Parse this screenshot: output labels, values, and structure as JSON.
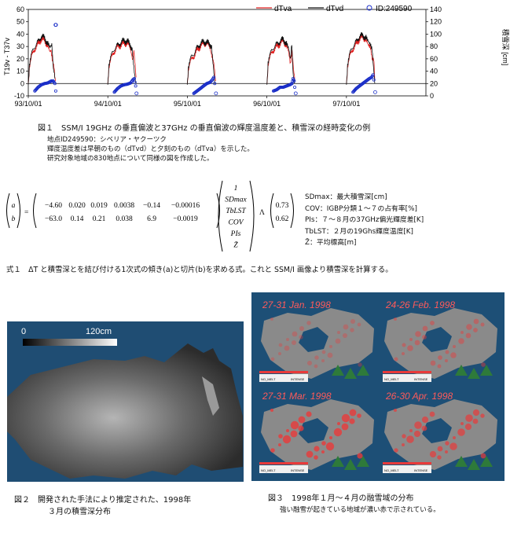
{
  "figure1": {
    "chart_data": {
      "type": "line",
      "x_tick_labels": [
        "93/10/01",
        "94/10/01",
        "95/10/01",
        "96/10/01",
        "97/10/01"
      ],
      "left_axis": {
        "label": "T19v - T37v",
        "ticks": [
          60,
          50,
          40,
          30,
          20,
          10,
          0,
          -10
        ],
        "ylim": [
          -10,
          60
        ]
      },
      "right_axis": {
        "label": "積雪深 [cm]",
        "ticks": [
          140,
          120,
          100,
          80,
          60,
          40,
          20,
          0
        ],
        "ylim": [
          0,
          140
        ]
      },
      "legend": {
        "placement": "top-right",
        "entries": [
          "dTva",
          "dTvd",
          "ID:249590"
        ]
      },
      "series": [
        {
          "name": "dTva",
          "color": "#e02020",
          "seasons": [
            {
              "start": 0,
              "points": [
                [
                  0,
                  0
                ],
                [
                  5,
                  12
                ],
                [
                  15,
                  22
                ],
                [
                  30,
                  28
                ],
                [
                  45,
                  32
                ],
                [
                  60,
                  36
                ],
                [
                  75,
                  35
                ],
                [
                  90,
                  30
                ],
                [
                  100,
                  24
                ],
                [
                  105,
                  28
                ],
                [
                  110,
                  18
                ],
                [
                  118,
                  12
                ],
                [
                  125,
                  2
                ]
              ]
            },
            {
              "start": 365,
              "points": [
                [
                  0,
                  0
                ],
                [
                  5,
                  12
                ],
                [
                  15,
                  20
                ],
                [
                  30,
                  26
                ],
                [
                  45,
                  30
                ],
                [
                  60,
                  31
                ],
                [
                  75,
                  33
                ],
                [
                  90,
                  32
                ],
                [
                  105,
                  29
                ],
                [
                  115,
                  20
                ],
                [
                  120,
                  25
                ],
                [
                  130,
                  5
                ]
              ]
            },
            {
              "start": 730,
              "points": [
                [
                  0,
                  0
                ],
                [
                  5,
                  10
                ],
                [
                  15,
                  18
                ],
                [
                  30,
                  22
                ],
                [
                  45,
                  27
                ],
                [
                  60,
                  30
                ],
                [
                  75,
                  33
                ],
                [
                  90,
                  32
                ],
                [
                  105,
                  30
                ],
                [
                  115,
                  22
                ],
                [
                  122,
                  15
                ],
                [
                  130,
                  2
                ]
              ]
            },
            {
              "start": 1096,
              "points": [
                [
                  0,
                  0
                ],
                [
                  5,
                  14
                ],
                [
                  15,
                  22
                ],
                [
                  30,
                  27
                ],
                [
                  45,
                  30
                ],
                [
                  60,
                  32
                ],
                [
                  75,
                  35
                ],
                [
                  90,
                  30
                ],
                [
                  100,
                  24
                ],
                [
                  108,
                  14
                ],
                [
                  115,
                  28
                ],
                [
                  122,
                  10
                ],
                [
                  128,
                  2
                ]
              ]
            },
            {
              "start": 1461,
              "points": [
                [
                  0,
                  0
                ],
                [
                  5,
                  12
                ],
                [
                  15,
                  22
                ],
                [
                  30,
                  28
                ],
                [
                  45,
                  32
                ],
                [
                  60,
                  36
                ],
                [
                  75,
                  38
                ],
                [
                  90,
                  35
                ],
                [
                  100,
                  30
                ],
                [
                  110,
                  28
                ],
                [
                  118,
                  18
                ],
                [
                  125,
                  22
                ],
                [
                  130,
                  4
                ]
              ]
            }
          ]
        },
        {
          "name": "dTvd",
          "color": "#111111",
          "seasons": [
            {
              "start": 0,
              "points": [
                [
                  0,
                  0
                ],
                [
                  5,
                  14
                ],
                [
                  15,
                  24
                ],
                [
                  30,
                  30
                ],
                [
                  45,
                  34
                ],
                [
                  60,
                  38
                ],
                [
                  75,
                  37
                ],
                [
                  90,
                  32
                ],
                [
                  100,
                  28
                ],
                [
                  108,
                  30
                ],
                [
                  115,
                  14
                ],
                [
                  122,
                  4
                ]
              ]
            },
            {
              "start": 365,
              "points": [
                [
                  0,
                  0
                ],
                [
                  5,
                  14
                ],
                [
                  15,
                  22
                ],
                [
                  30,
                  28
                ],
                [
                  45,
                  31
                ],
                [
                  60,
                  33
                ],
                [
                  75,
                  35
                ],
                [
                  90,
                  34
                ],
                [
                  105,
                  31
                ],
                [
                  112,
                  26
                ],
                [
                  122,
                  8
                ],
                [
                  128,
                  0
                ]
              ]
            },
            {
              "start": 730,
              "points": [
                [
                  0,
                  0
                ],
                [
                  5,
                  12
                ],
                [
                  15,
                  20
                ],
                [
                  30,
                  24
                ],
                [
                  45,
                  29
                ],
                [
                  60,
                  32
                ],
                [
                  75,
                  34
                ],
                [
                  90,
                  33
                ],
                [
                  105,
                  32
                ],
                [
                  112,
                  28
                ],
                [
                  120,
                  12
                ],
                [
                  126,
                  0
                ]
              ]
            },
            {
              "start": 1096,
              "points": [
                [
                  0,
                  0
                ],
                [
                  5,
                  16
                ],
                [
                  15,
                  24
                ],
                [
                  30,
                  29
                ],
                [
                  45,
                  32
                ],
                [
                  60,
                  34
                ],
                [
                  75,
                  36
                ],
                [
                  90,
                  32
                ],
                [
                  100,
                  27
                ],
                [
                  108,
                  18
                ],
                [
                  114,
                  31
                ],
                [
                  120,
                  6
                ],
                [
                  126,
                  0
                ]
              ]
            },
            {
              "start": 1461,
              "points": [
                [
                  0,
                  0
                ],
                [
                  5,
                  14
                ],
                [
                  15,
                  24
                ],
                [
                  30,
                  30
                ],
                [
                  45,
                  34
                ],
                [
                  60,
                  38
                ],
                [
                  75,
                  39
                ],
                [
                  90,
                  37
                ],
                [
                  100,
                  33
                ],
                [
                  110,
                  30
                ],
                [
                  118,
                  26
                ],
                [
                  124,
                  12
                ],
                [
                  130,
                  0
                ]
              ]
            }
          ]
        },
        {
          "name": "ID:249590",
          "color": "#1a2ec8",
          "seasons": [
            {
              "start": 30,
              "points": [
                [
                  0,
                  8
                ],
                [
                  15,
                  14
                ],
                [
                  30,
                  18
                ],
                [
                  45,
                  20
                ],
                [
                  60,
                  21
                ],
                [
                  75,
                  24
                ],
                [
                  85,
                  24
                ],
                [
                  92,
                  20
                ],
                [
                  96,
                  8
                ],
                [
                  98,
                  2
                ],
                [
                  95,
                  115
                ]
              ]
            },
            {
              "start": 395,
              "points": [
                [
                  0,
                  6
                ],
                [
                  15,
                  12
                ],
                [
                  30,
                  16
                ],
                [
                  45,
                  18
                ],
                [
                  60,
                  19
                ],
                [
                  75,
                  21
                ],
                [
                  85,
                  26
                ],
                [
                  92,
                  28
                ],
                [
                  98,
                  16
                ],
                [
                  100,
                  4
                ]
              ]
            },
            {
              "start": 760,
              "points": [
                [
                  0,
                  4
                ],
                [
                  15,
                  8
                ],
                [
                  30,
                  12
                ],
                [
                  45,
                  16
                ],
                [
                  60,
                  20
                ],
                [
                  75,
                  22
                ],
                [
                  85,
                  26
                ],
                [
                  92,
                  30
                ],
                [
                  96,
                  20
                ],
                [
                  100,
                  4
                ]
              ]
            },
            {
              "start": 1126,
              "points": [
                [
                  0,
                  8
                ],
                [
                  15,
                  10
                ],
                [
                  30,
                  14
                ],
                [
                  45,
                  14
                ],
                [
                  60,
                  16
                ],
                [
                  75,
                  18
                ],
                [
                  85,
                  20
                ],
                [
                  90,
                  28
                ],
                [
                  95,
                  24
                ],
                [
                  100,
                  4
                ]
              ]
            },
            {
              "start": 1491,
              "points": [
                [
                  0,
                  6
                ],
                [
                  15,
                  12
                ],
                [
                  30,
                  16
                ],
                [
                  45,
                  20
                ],
                [
                  60,
                  24
                ],
                [
                  75,
                  28
                ],
                [
                  85,
                  30
                ],
                [
                  92,
                  34
                ],
                [
                  96,
                  26
                ],
                [
                  100,
                  6
                ]
              ]
            }
          ]
        }
      ]
    },
    "caption": "図１　SSM/I 19GHz の垂直偏波と37GHz の垂直偏波の輝度温度差と、積雪深の経時変化の例",
    "notes": [
      "地点ID249590：シベリア・ヤクーツク",
      "輝度温度差は早朝のもの（dTvd）と夕刻のもの（dTva）を示した。",
      "研究対象地域の830地点について同様の図を作成した。"
    ]
  },
  "equation": {
    "lhs": [
      "a",
      "b"
    ],
    "matrix": [
      [
        "−4.60",
        "0.020",
        "0.019",
        "0.0038",
        "−0.14",
        "−0.00016"
      ],
      [
        "−63.0",
        "0.14",
        "0.21",
        "0.038",
        "6.9",
        "−0.0019"
      ]
    ],
    "vector": [
      "1",
      "SDmax",
      "TbLST",
      "COV",
      "PIs",
      "Z̄"
    ],
    "operator": "Λ",
    "constants": [
      "0.73",
      "0.62"
    ],
    "definitions": [
      "SDmax：最大積雪深[cm]",
      "COV：IGBP分類１〜７の占有率[%]",
      "PIs：７〜８月の37GHz偏光輝度差[K]",
      "TbLST：２月の19Ghs輝度温度[K]",
      "Z̄：平均標高[m]"
    ],
    "caption": "式１　ΔT と積雪深とを結び付ける1次式の傾き(a)と切片(b)を求める式。これと SSM/I 画像より積雪深を計算する。"
  },
  "figure2": {
    "colorbar_min": "0",
    "colorbar_max": "120cm",
    "caption_line1": "図２　開発された手法により推定された、1998年",
    "caption_line2": "３月の積雪深分布"
  },
  "figure3": {
    "panels": [
      {
        "title": "27-31 Jan. 1998",
        "legend_a": "NO_MELT",
        "legend_b": "INTENSE"
      },
      {
        "title": "24-26 Feb. 1998",
        "legend_a": "NO_MELT",
        "legend_b": "INTENSE"
      },
      {
        "title": "27-31 Mar. 1998",
        "legend_a": "NO_MELT",
        "legend_b": "INTENSE"
      },
      {
        "title": "26-30 Apr. 1998",
        "legend_a": "NO_MELT",
        "legend_b": "INTENSE"
      }
    ],
    "caption_line1": "図３　1998年１月〜４月の融雪域の分布",
    "caption_line2": "強い融雪が起きている地域が濃い赤で示されている。"
  },
  "colors": {
    "melt_red": "#e83a3a",
    "ocean": "#1d4f76",
    "land": "#8a8a8a"
  }
}
